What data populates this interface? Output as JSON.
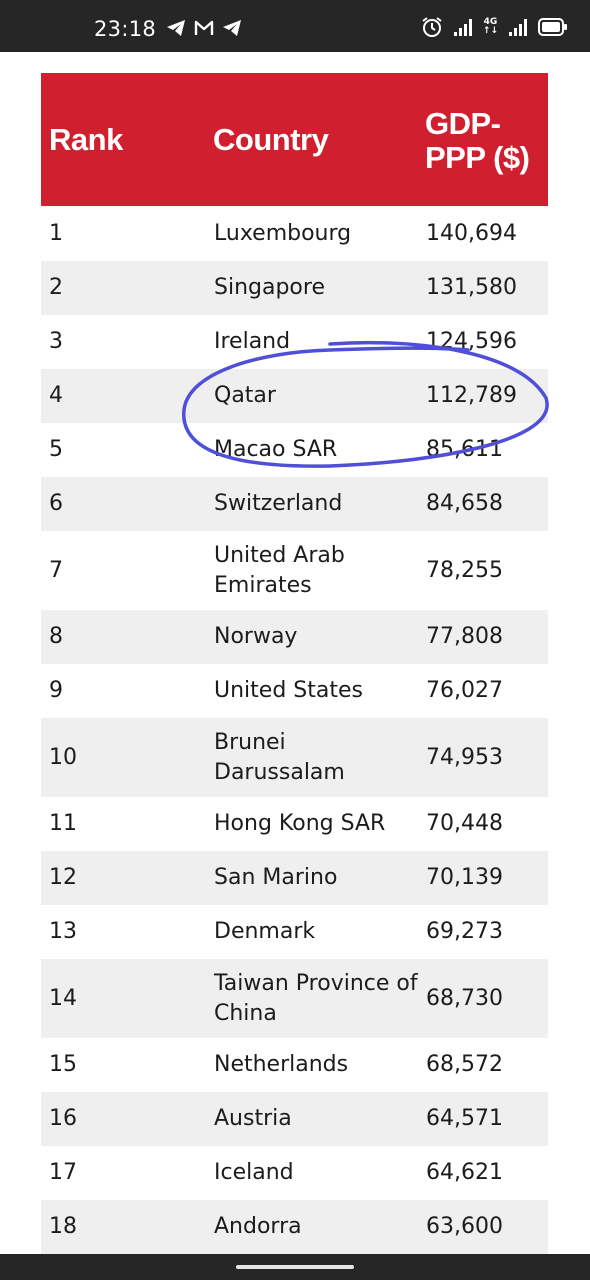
{
  "status_bar": {
    "time": "23:18",
    "left_icons": [
      "telegram-icon",
      "gmail-icon",
      "telegram-icon"
    ],
    "right_icons": [
      "alarm-icon",
      "signal-icon",
      "signal-icon",
      "battery-icon"
    ],
    "network_top": "4G",
    "network_bottom": "↑↓"
  },
  "table": {
    "header_color": "#d0202f",
    "columns": {
      "rank": "Rank",
      "country": "Country",
      "gdp": "GDP-PPP ($)"
    },
    "rows": [
      {
        "rank": "1",
        "country": "Luxembourg",
        "gdp": "140,694"
      },
      {
        "rank": "2",
        "country": "Singapore",
        "gdp": "131,580"
      },
      {
        "rank": "3",
        "country": "Ireland",
        "gdp": "124,596"
      },
      {
        "rank": "4",
        "country": "Qatar",
        "gdp": "112,789"
      },
      {
        "rank": "5",
        "country": "Macao SAR",
        "gdp": "85,611"
      },
      {
        "rank": "6",
        "country": "Switzerland",
        "gdp": "84,658"
      },
      {
        "rank": "7",
        "country": "United Arab Emirates",
        "gdp": "78,255"
      },
      {
        "rank": "8",
        "country": "Norway",
        "gdp": "77,808"
      },
      {
        "rank": "9",
        "country": "United States",
        "gdp": "76,027"
      },
      {
        "rank": "10",
        "country": "Brunei Darussalam",
        "gdp": "74,953"
      },
      {
        "rank": "11",
        "country": "Hong Kong SAR",
        "gdp": "70,448"
      },
      {
        "rank": "12",
        "country": "San Marino",
        "gdp": "70,139"
      },
      {
        "rank": "13",
        "country": "Denmark",
        "gdp": "69,273"
      },
      {
        "rank": "14",
        "country": "Taiwan Province of China",
        "gdp": "68,730"
      },
      {
        "rank": "15",
        "country": "Netherlands",
        "gdp": "68,572"
      },
      {
        "rank": "16",
        "country": "Austria",
        "gdp": "64,571"
      },
      {
        "rank": "17",
        "country": "Iceland",
        "gdp": "64,621"
      },
      {
        "rank": "18",
        "country": "Andorra",
        "gdp": "63,600"
      }
    ]
  },
  "annotation": {
    "type": "hand-drawn ellipse",
    "color": "#4f4fd8"
  }
}
